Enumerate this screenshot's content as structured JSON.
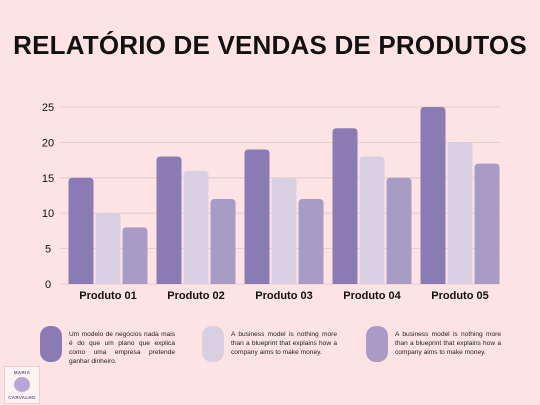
{
  "title": "RELATÓRIO DE VENDAS DE PRODUTOS",
  "chart_data": {
    "type": "bar",
    "categories": [
      "Produto 01",
      "Produto 02",
      "Produto 03",
      "Produto 04",
      "Produto 05"
    ],
    "series": [
      {
        "values": [
          15,
          18,
          19,
          22,
          25
        ],
        "color": "#8b7bb5"
      },
      {
        "values": [
          10,
          16,
          15,
          18,
          20
        ],
        "color": "#d8d0e2"
      },
      {
        "values": [
          8,
          12,
          12,
          15,
          17
        ],
        "color": "#a89bc6"
      }
    ],
    "yticks": [
      0,
      5,
      10,
      15,
      20,
      25
    ],
    "ylim": [
      0,
      25
    ],
    "grid": true,
    "legend": "bottom"
  },
  "legend": [
    {
      "text": "Um modelo de negócios nada mais é do que um plano que explica como uma empresa pretende ganhar dinheiro.",
      "color": "#8b7bb5"
    },
    {
      "text": "A business model is nothing more than a blueprint that explains how a company aims to make money.",
      "color": "#d8d0e2"
    },
    {
      "text": "A business model is nothing more than a blueprint that explains how a company aims to make money.",
      "color": "#a89bc6"
    }
  ],
  "logo": {
    "line1": "MARIA",
    "line2": "CARVALHO"
  }
}
